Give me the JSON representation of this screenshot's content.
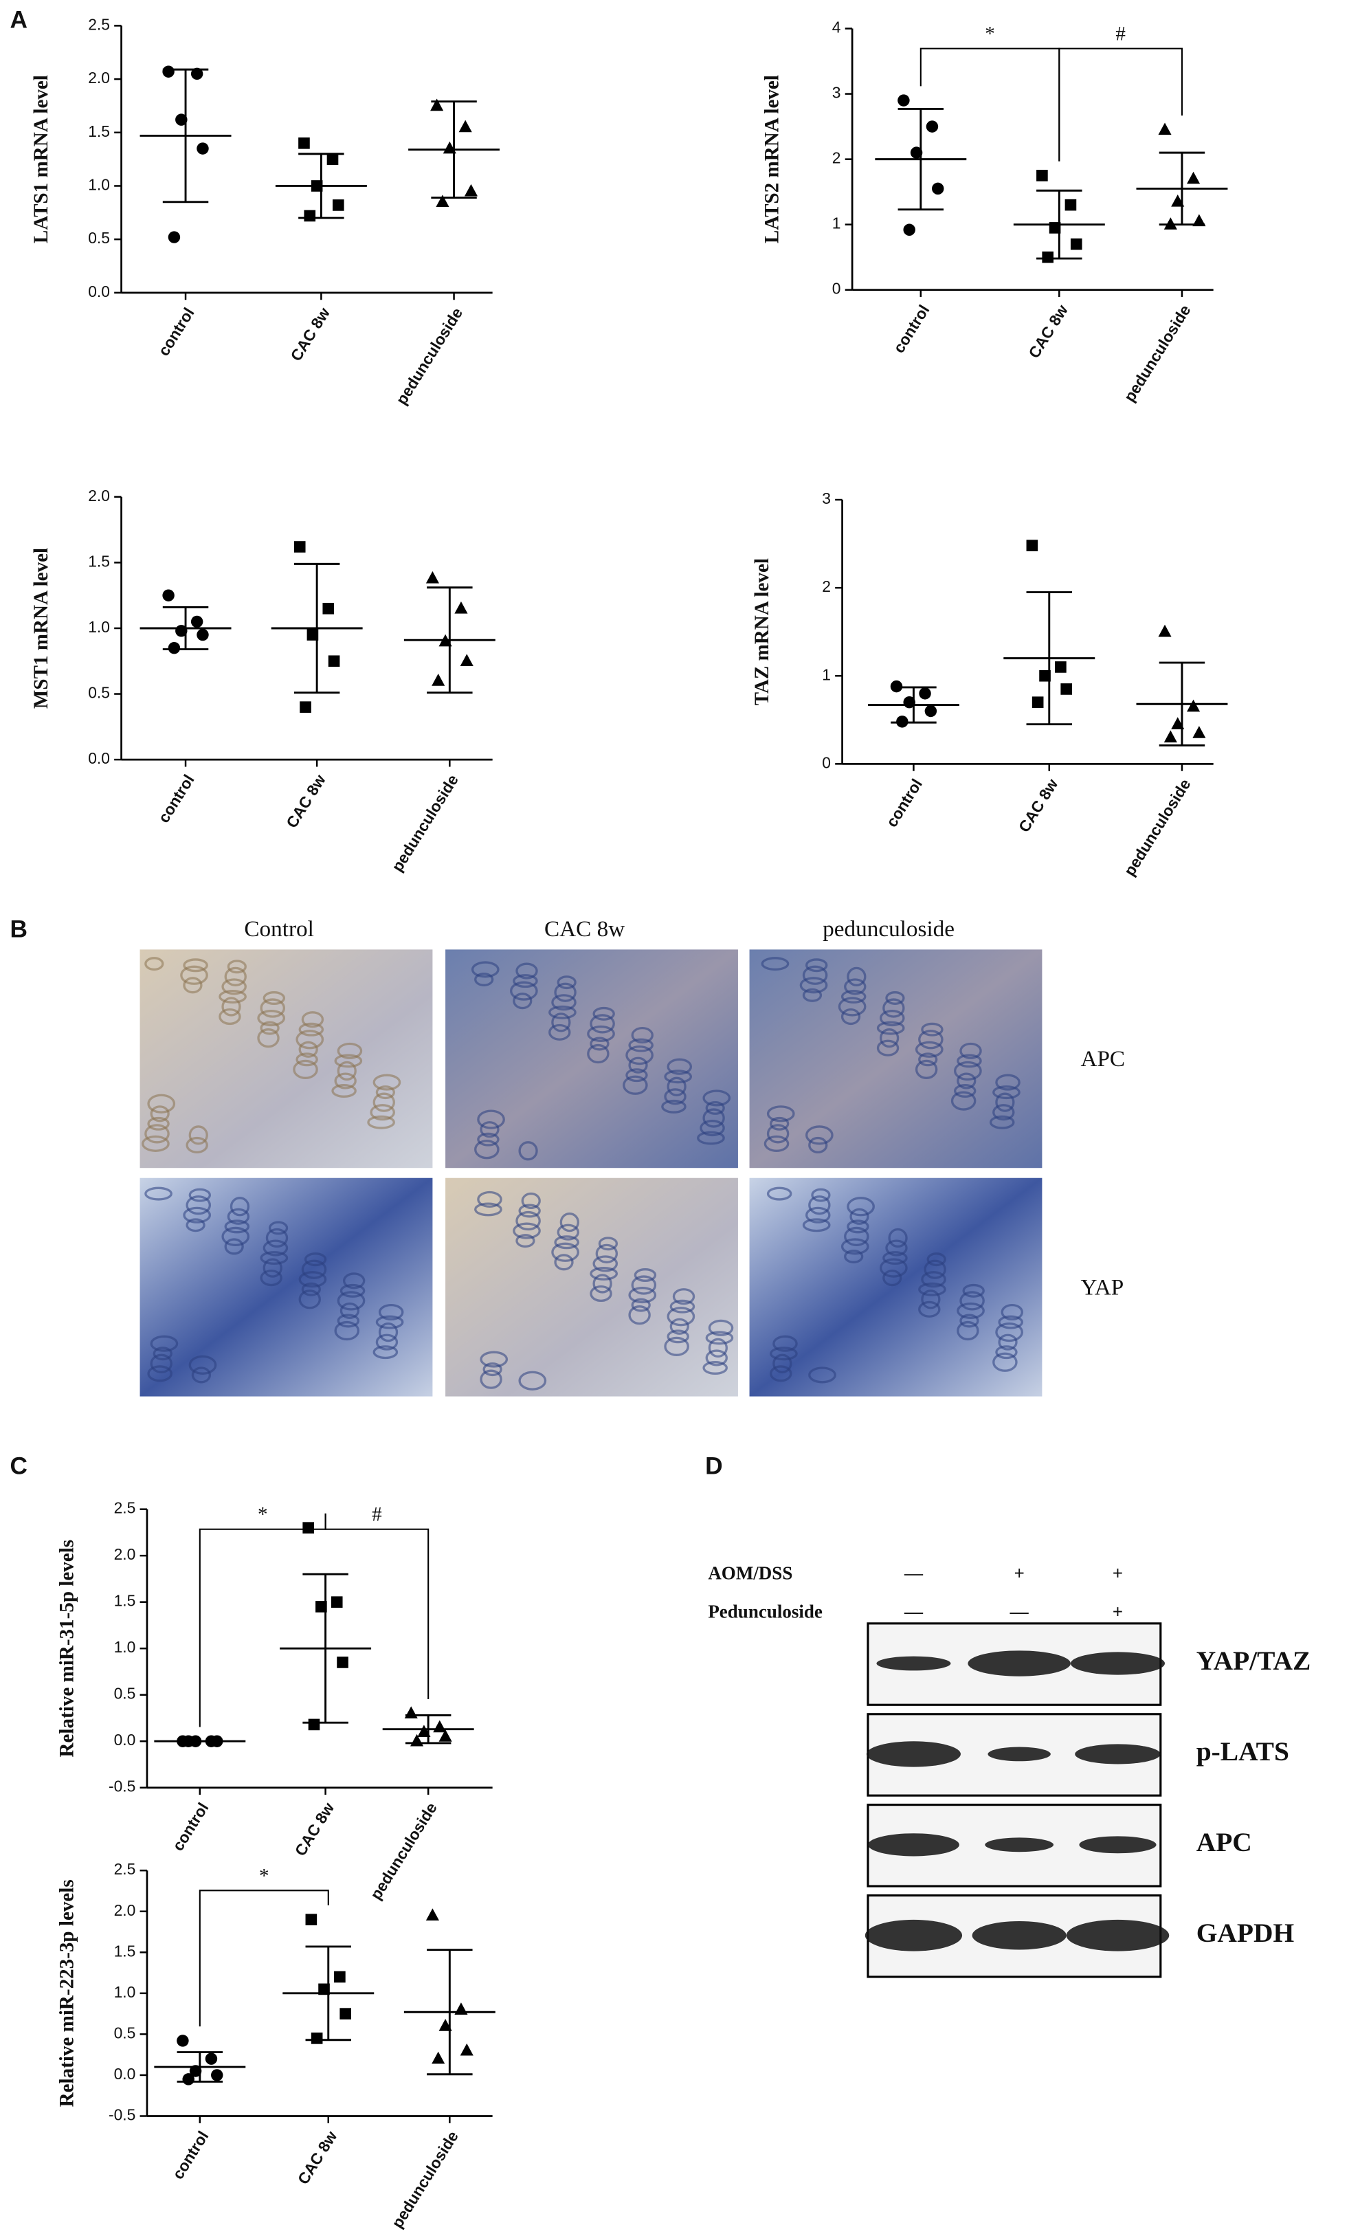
{
  "panels": [
    "A",
    "B",
    "C",
    "D"
  ],
  "chart_data": [
    {
      "type": "dotplot",
      "y_label": "LATS1 mRNA level",
      "categories": [
        "control",
        "CAC 8w",
        "pedunculoside"
      ],
      "markers": [
        "circle",
        "square",
        "triangle"
      ],
      "points": [
        [
          2.07,
          2.05,
          1.62,
          1.35,
          0.52
        ],
        [
          1.4,
          1.25,
          1.0,
          0.82,
          0.72
        ],
        [
          1.75,
          1.55,
          1.35,
          0.95,
          0.85
        ]
      ],
      "means": [
        1.47,
        1.0,
        1.34
      ],
      "sd": [
        0.62,
        0.3,
        0.45
      ],
      "ylim": [
        0,
        2.5
      ],
      "yticks": [
        {
          "value": 0,
          "label": "0.0"
        },
        0.5,
        {
          "value": 1,
          "label": "1.0"
        },
        1.5,
        {
          "value": 2,
          "label": "2.0"
        },
        2.5
      ]
    },
    {
      "type": "dotplot",
      "y_label": "LATS2 mRNA level",
      "categories": [
        "control",
        "CAC 8w",
        "pedunculoside"
      ],
      "markers": [
        "circle",
        "square",
        "triangle"
      ],
      "points": [
        [
          2.9,
          2.5,
          2.1,
          1.55,
          0.92
        ],
        [
          1.75,
          1.3,
          0.95,
          0.7,
          0.5
        ],
        [
          2.45,
          1.7,
          1.35,
          1.05,
          1.0
        ]
      ],
      "means": [
        2.0,
        1.0,
        1.55
      ],
      "sd": [
        0.77,
        0.52,
        0.55
      ],
      "ylim": [
        0,
        4
      ],
      "yticks": [
        0,
        1,
        2,
        3,
        4
      ],
      "comparisons": [
        {
          "between": [
            0,
            1
          ],
          "label": "*"
        },
        {
          "between": [
            1,
            2
          ],
          "label": "#"
        }
      ]
    },
    {
      "type": "dotplot",
      "y_label": "MST1 mRNA level",
      "categories": [
        "control",
        "CAC 8w",
        "pedunculoside"
      ],
      "markers": [
        "circle",
        "square",
        "triangle"
      ],
      "points": [
        [
          1.25,
          1.05,
          0.98,
          0.95,
          0.85
        ],
        [
          1.62,
          1.15,
          0.95,
          0.75,
          0.4
        ],
        [
          1.38,
          1.15,
          0.9,
          0.75,
          0.6
        ]
      ],
      "means": [
        1.0,
        1.0,
        0.91
      ],
      "sd": [
        0.16,
        0.49,
        0.4
      ],
      "ylim": [
        0,
        2
      ],
      "yticks": [
        {
          "value": 0,
          "label": "0.0"
        },
        0.5,
        {
          "value": 1,
          "label": "1.0"
        },
        1.5,
        {
          "value": 2,
          "label": "2.0"
        }
      ]
    },
    {
      "type": "dotplot",
      "y_label": "TAZ mRNA level",
      "categories": [
        "control",
        "CAC 8w",
        "pedunculoside"
      ],
      "markers": [
        "circle",
        "square",
        "triangle"
      ],
      "points": [
        [
          0.88,
          0.8,
          0.7,
          0.6,
          0.48
        ],
        [
          2.48,
          1.1,
          1.0,
          0.85,
          0.7
        ],
        [
          1.5,
          0.65,
          0.45,
          0.35,
          0.3
        ]
      ],
      "means": [
        0.67,
        1.2,
        0.68
      ],
      "sd": [
        0.2,
        0.75,
        0.47
      ],
      "ylim": [
        0,
        3
      ],
      "yticks": [
        0,
        1,
        2,
        3
      ]
    },
    {
      "type": "dotplot",
      "y_label": "Relative miR-31-5p levels",
      "categories": [
        "control",
        "CAC 8w",
        "pedunculoside"
      ],
      "markers": [
        "circle",
        "square",
        "triangle"
      ],
      "points": [
        [
          0,
          0,
          0,
          0,
          0
        ],
        [
          2.3,
          1.5,
          1.45,
          0.85,
          0.18
        ],
        [
          0.3,
          0.15,
          0.1,
          0.05,
          0
        ]
      ],
      "means": [
        0,
        1.0,
        0.13
      ],
      "sd": [
        0,
        0.8,
        0.15
      ],
      "ylim": [
        -0.5,
        2.5
      ],
      "yticks": [
        -0.5,
        {
          "value": 0,
          "label": "0.0"
        },
        0.5,
        {
          "value": 1,
          "label": "1.0"
        },
        1.5,
        {
          "value": 2,
          "label": "2.0"
        },
        2.5
      ],
      "comparisons": [
        {
          "between": [
            0,
            1
          ],
          "label": "*"
        },
        {
          "between": [
            1,
            2
          ],
          "label": "#"
        }
      ]
    },
    {
      "type": "dotplot",
      "y_label": "Relative miR-223-3p levels",
      "categories": [
        "control",
        "CAC 8w",
        "pedunculoside"
      ],
      "markers": [
        "circle",
        "square",
        "triangle"
      ],
      "points": [
        [
          0.42,
          0.2,
          0.05,
          0,
          -0.05
        ],
        [
          1.9,
          1.2,
          1.05,
          0.75,
          0.45
        ],
        [
          1.95,
          0.8,
          0.6,
          0.3,
          0.2
        ]
      ],
      "means": [
        0.1,
        1.0,
        0.77
      ],
      "sd": [
        0.18,
        0.57,
        0.76
      ],
      "ylim": [
        -0.5,
        2.5
      ],
      "yticks": [
        -0.5,
        {
          "value": 0,
          "label": "0.0"
        },
        0.5,
        {
          "value": 1,
          "label": "1.0"
        },
        1.5,
        {
          "value": 2,
          "label": "2.0"
        },
        2.5
      ],
      "comparisons": [
        {
          "between": [
            0,
            1
          ],
          "label": "*"
        }
      ]
    }
  ],
  "histology": {
    "columns": [
      "Control",
      "CAC 8w",
      "pedunculoside"
    ],
    "rows": [
      "APC",
      "YAP"
    ]
  },
  "western_blot": {
    "conditions": [
      {
        "label": "AOM/DSS",
        "signs": [
          "—",
          "+",
          "+"
        ]
      },
      {
        "label": "Pedunculoside",
        "signs": [
          "—",
          "—",
          "+"
        ]
      }
    ],
    "proteins": [
      "YAP/TAZ",
      "p-LATS",
      "APC",
      "GAPDH"
    ]
  }
}
